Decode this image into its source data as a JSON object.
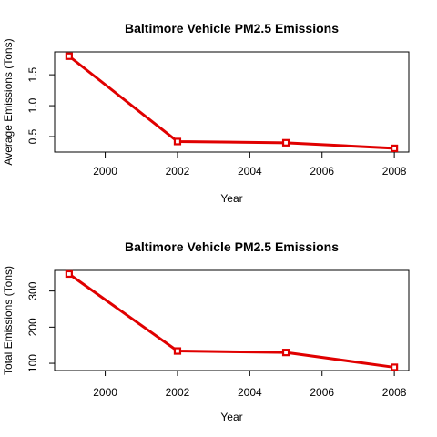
{
  "chart_data": [
    {
      "type": "line",
      "title": "Baltimore Vehicle PM2.5 Emissions",
      "xlabel": "Year",
      "ylabel": "Average Emissions (Tons)",
      "x": [
        1999,
        2002,
        2005,
        2008
      ],
      "values": [
        1.8,
        0.42,
        0.4,
        0.31
      ],
      "xlim": [
        1998.6,
        2008.4
      ],
      "ylim": [
        0.25,
        1.87
      ],
      "xticks": [
        2000,
        2002,
        2004,
        2006,
        2008
      ],
      "yticks": [
        0.5,
        1.0,
        1.5
      ],
      "yticklabels": [
        "0.5",
        "1.0",
        "1.5"
      ],
      "color": "#e00000",
      "grid": false
    },
    {
      "type": "line",
      "title": "Baltimore Vehicle PM2.5 Emissions",
      "xlabel": "Year",
      "ylabel": "Total Emissions (Tons)",
      "x": [
        1999,
        2002,
        2005,
        2008
      ],
      "values": [
        347,
        134,
        130,
        89
      ],
      "xlim": [
        1998.6,
        2008.4
      ],
      "ylim": [
        80,
        357
      ],
      "xticks": [
        2000,
        2002,
        2004,
        2006,
        2008
      ],
      "yticks": [
        100,
        200,
        300
      ],
      "yticklabels": [
        "100",
        "200",
        "300"
      ],
      "color": "#e00000",
      "grid": false
    }
  ]
}
